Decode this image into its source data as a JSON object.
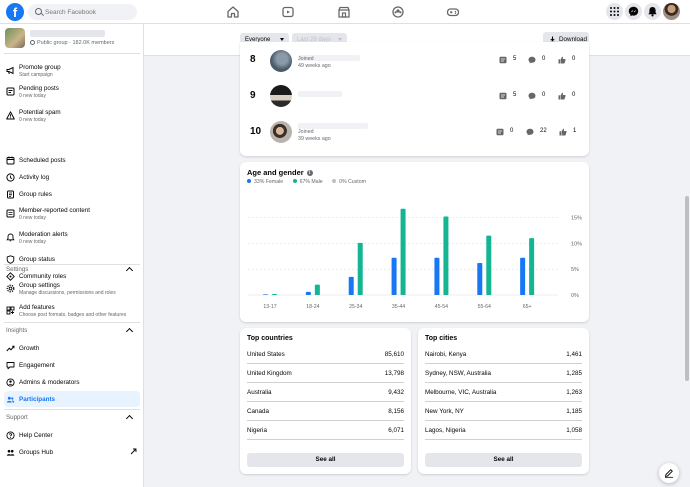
{
  "search": {
    "placeholder": "Search Facebook"
  },
  "group": {
    "meta": "Public group · 182.0K members"
  },
  "sidebar": {
    "admin_items": [
      {
        "label": "Promote group",
        "sub": "Start campaign",
        "icon": "megaphone-icon"
      },
      {
        "label": "Pending posts",
        "sub": "0 new today",
        "icon": "pending-posts-icon"
      },
      {
        "label": "Potential spam",
        "sub": "0 new today",
        "icon": "warning-icon"
      },
      {
        "label": "Scheduled posts",
        "sub": "",
        "icon": "calendar-icon"
      },
      {
        "label": "Activity log",
        "sub": "",
        "icon": "clock-icon"
      },
      {
        "label": "Group rules",
        "sub": "",
        "icon": "rules-icon"
      },
      {
        "label": "Member-reported content",
        "sub": "0 new today",
        "icon": "report-icon"
      },
      {
        "label": "Moderation alerts",
        "sub": "0 new today",
        "icon": "bell-alert-icon"
      },
      {
        "label": "Group status",
        "sub": "",
        "icon": "shield-icon"
      },
      {
        "label": "Community roles",
        "sub": "",
        "icon": "diamond-icon"
      }
    ],
    "settings_label": "Settings",
    "settings_items": [
      {
        "label": "Group settings",
        "sub": "Manage discussions, permissions and roles",
        "icon": "gear-icon"
      },
      {
        "label": "Add features",
        "sub": "Choose post formats, badges and other features",
        "icon": "add-features-icon"
      }
    ],
    "insights_label": "Insights",
    "insights_items": [
      {
        "label": "Growth",
        "icon": "growth-icon"
      },
      {
        "label": "Engagement",
        "icon": "engagement-icon"
      },
      {
        "label": "Admins & moderators",
        "icon": "admins-icon"
      },
      {
        "label": "Participants",
        "icon": "participants-icon",
        "active": true
      }
    ],
    "support_label": "Support",
    "support_items": [
      {
        "label": "Help Center",
        "icon": "help-icon"
      },
      {
        "label": "Groups Hub",
        "icon": "groups-hub-icon"
      }
    ]
  },
  "header": {
    "audience": "Everyone",
    "period": "Last 28 days",
    "download_label": "Download"
  },
  "contributors": [
    {
      "rank": "8",
      "joined": "Joined",
      "joined_time": "49 weeks ago",
      "posts": "5",
      "comments": "0",
      "reactions": "0"
    },
    {
      "rank": "9",
      "joined": "",
      "joined_time": "",
      "posts": "5",
      "comments": "0",
      "reactions": "0"
    },
    {
      "rank": "10",
      "joined": "Joined",
      "joined_time": "39 weeks ago",
      "posts": "0",
      "comments": "22",
      "reactions": "1"
    }
  ],
  "age_gender": {
    "title": "Age and gender",
    "legend": [
      {
        "label": "33% Female",
        "color": "#1877f2"
      },
      {
        "label": "67% Male",
        "color": "#13b592"
      },
      {
        "label": "0% Custom",
        "color": "#bcc0c4"
      }
    ]
  },
  "chart_data": {
    "type": "bar",
    "categories": [
      "13-17",
      "18-24",
      "25-34",
      "35-44",
      "45-54",
      "55-64",
      "65+"
    ],
    "series": [
      {
        "name": "Female",
        "color": "#1877f2",
        "values": [
          0.1,
          0.6,
          3.5,
          7.2,
          7.2,
          6.2,
          7.2
        ]
      },
      {
        "name": "Male",
        "color": "#13b592",
        "values": [
          0.2,
          2.0,
          10.1,
          16.7,
          15.2,
          11.5,
          11.0
        ]
      },
      {
        "name": "Custom",
        "color": "#bcc0c4",
        "values": [
          0,
          0,
          0,
          0,
          0,
          0,
          0
        ]
      }
    ],
    "yticks": [
      "0%",
      "5%",
      "10%",
      "15%"
    ],
    "ylim": [
      0,
      18
    ]
  },
  "top_countries": {
    "title": "Top countries",
    "items": [
      {
        "name": "United States",
        "value": "85,610"
      },
      {
        "name": "United Kingdom",
        "value": "13,798"
      },
      {
        "name": "Australia",
        "value": "9,432"
      },
      {
        "name": "Canada",
        "value": "8,156"
      },
      {
        "name": "Nigeria",
        "value": "6,071"
      }
    ],
    "see_all": "See all"
  },
  "top_cities": {
    "title": "Top cities",
    "items": [
      {
        "name": "Nairobi, Kenya",
        "value": "1,461"
      },
      {
        "name": "Sydney, NSW, Australia",
        "value": "1,285"
      },
      {
        "name": "Melbourne, VIC, Australia",
        "value": "1,263"
      },
      {
        "name": "New York, NY",
        "value": "1,185"
      },
      {
        "name": "Lagos, Nigeria",
        "value": "1,058"
      }
    ],
    "see_all": "See all"
  }
}
